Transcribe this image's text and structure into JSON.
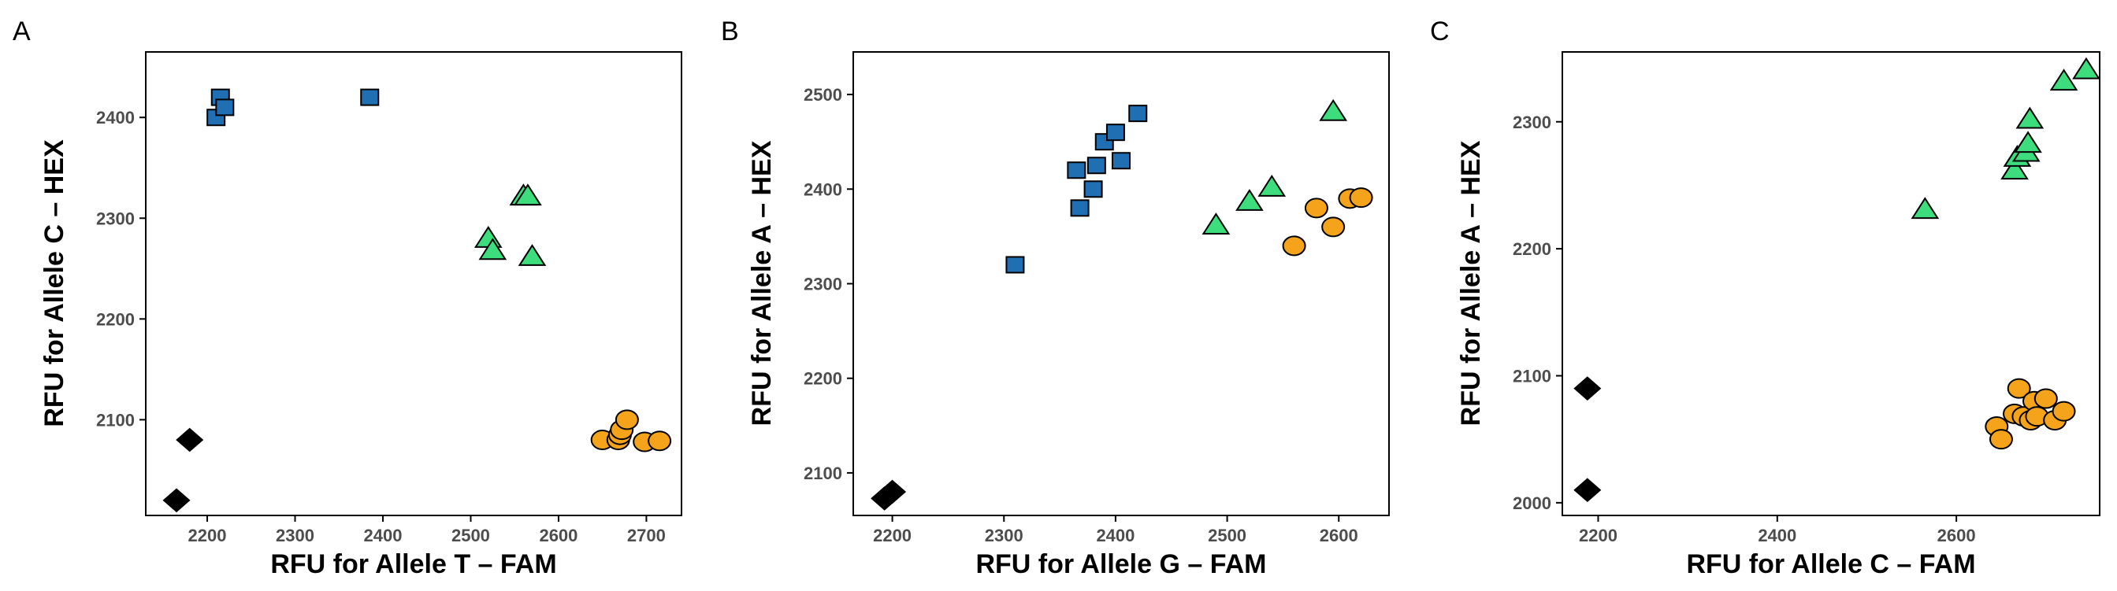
{
  "colors": {
    "square": "#1f6fb2",
    "triangle": "#3ddc7c",
    "circle": "#f5a31a",
    "diamond": "#000000"
  },
  "chart_data": [
    {
      "type": "scatter",
      "panel": "A",
      "xlabel": "RFU for Allele T – FAM",
      "ylabel": "RFU for Allele C – HEX",
      "xlim": [
        2130,
        2740
      ],
      "ylim": [
        2005,
        2465
      ],
      "xticks": [
        2200,
        2300,
        2400,
        2500,
        2600,
        2700
      ],
      "yticks": [
        2100,
        2200,
        2300,
        2400
      ],
      "series": [
        {
          "name": "square",
          "points": [
            [
              2210,
              2400
            ],
            [
              2215,
              2420
            ],
            [
              2220,
              2410
            ],
            [
              2385,
              2420
            ]
          ]
        },
        {
          "name": "triangle",
          "points": [
            [
              2520,
              2280
            ],
            [
              2525,
              2268
            ],
            [
              2560,
              2322
            ],
            [
              2565,
              2322
            ],
            [
              2570,
              2262
            ]
          ]
        },
        {
          "name": "circle",
          "points": [
            [
              2650,
              2080
            ],
            [
              2668,
              2080
            ],
            [
              2670,
              2085
            ],
            [
              2672,
              2090
            ],
            [
              2678,
              2100
            ],
            [
              2698,
              2078
            ],
            [
              2715,
              2079
            ]
          ]
        },
        {
          "name": "diamond",
          "points": [
            [
              2165,
              2020
            ],
            [
              2180,
              2080
            ]
          ]
        }
      ]
    },
    {
      "type": "scatter",
      "panel": "B",
      "xlabel": "RFU for Allele G – FAM",
      "ylabel": "RFU for Allele A – HEX",
      "xlim": [
        2165,
        2645
      ],
      "ylim": [
        2055,
        2545
      ],
      "xticks": [
        2200,
        2300,
        2400,
        2500,
        2600
      ],
      "yticks": [
        2100,
        2200,
        2300,
        2400,
        2500
      ],
      "series": [
        {
          "name": "square",
          "points": [
            [
              2310,
              2320
            ],
            [
              2365,
              2420
            ],
            [
              2368,
              2380
            ],
            [
              2380,
              2400
            ],
            [
              2383,
              2425
            ],
            [
              2390,
              2450
            ],
            [
              2400,
              2460
            ],
            [
              2405,
              2430
            ],
            [
              2420,
              2480
            ]
          ]
        },
        {
          "name": "triangle",
          "points": [
            [
              2490,
              2362
            ],
            [
              2520,
              2387
            ],
            [
              2540,
              2402
            ],
            [
              2595,
              2482
            ]
          ]
        },
        {
          "name": "circle",
          "points": [
            [
              2560,
              2340
            ],
            [
              2580,
              2380
            ],
            [
              2595,
              2360
            ],
            [
              2610,
              2390
            ],
            [
              2620,
              2391
            ]
          ]
        },
        {
          "name": "diamond",
          "points": [
            [
              2193,
              2073
            ],
            [
              2200,
              2080
            ]
          ]
        }
      ]
    },
    {
      "type": "scatter",
      "panel": "C",
      "xlabel": "RFU for Allele C – FAM",
      "ylabel": "RFU for Allele A – HEX",
      "xlim": [
        2160,
        2760
      ],
      "ylim": [
        1990,
        2355
      ],
      "xticks": [
        2200,
        2400,
        2600
      ],
      "yticks": [
        2000,
        2100,
        2200,
        2300
      ],
      "series": [
        {
          "name": "square",
          "points": []
        },
        {
          "name": "triangle",
          "points": [
            [
              2565,
              2231
            ],
            [
              2665,
              2262
            ],
            [
              2668,
              2272
            ],
            [
              2678,
              2276
            ],
            [
              2680,
              2283
            ],
            [
              2682,
              2302
            ],
            [
              2720,
              2332
            ],
            [
              2745,
              2341
            ]
          ]
        },
        {
          "name": "circle",
          "points": [
            [
              2645,
              2060
            ],
            [
              2650,
              2050
            ],
            [
              2665,
              2070
            ],
            [
              2670,
              2090
            ],
            [
              2675,
              2068
            ],
            [
              2683,
              2065
            ],
            [
              2687,
              2080
            ],
            [
              2690,
              2068
            ],
            [
              2700,
              2082
            ],
            [
              2710,
              2065
            ],
            [
              2720,
              2072
            ]
          ]
        },
        {
          "name": "diamond",
          "points": [
            [
              2188,
              2090
            ],
            [
              2188,
              2010
            ]
          ]
        }
      ]
    }
  ]
}
